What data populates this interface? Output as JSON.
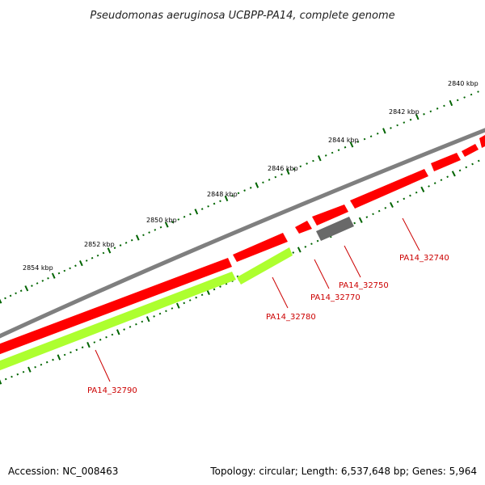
{
  "title": "Pseudomonas aeruginosa UCBPP-PA14, complete genome",
  "accession": "Accession: NC_008463",
  "summary": "Topology: circular; Length: 6,537,648 bp; Genes: 5,964",
  "ruler": {
    "labels": [
      "2840 kbp",
      "2842 kbp",
      "2844 kbp",
      "2846 kbp",
      "2848 kbp",
      "2850 kbp",
      "2852 kbp",
      "2854 kbp"
    ]
  },
  "colors": {
    "backbone": "#808080",
    "forward_gene": "#ff0000",
    "reverse_gene_green": "#adff2f",
    "reverse_gene_grey": "#696969",
    "tick": "#006400",
    "gene_label": "#cc0000",
    "leader_line": "#cc0000"
  },
  "genes": [
    {
      "label": "PA14_32740",
      "strand": "forward",
      "color": "red"
    },
    {
      "label": "PA14_32750",
      "strand": "reverse",
      "color": "grey"
    },
    {
      "label": "PA14_32770",
      "strand": "forward",
      "color": "red"
    },
    {
      "label": "PA14_32780",
      "strand": "reverse",
      "color": "green"
    },
    {
      "label": "PA14_32790",
      "strand": "forward",
      "color": "red"
    }
  ]
}
